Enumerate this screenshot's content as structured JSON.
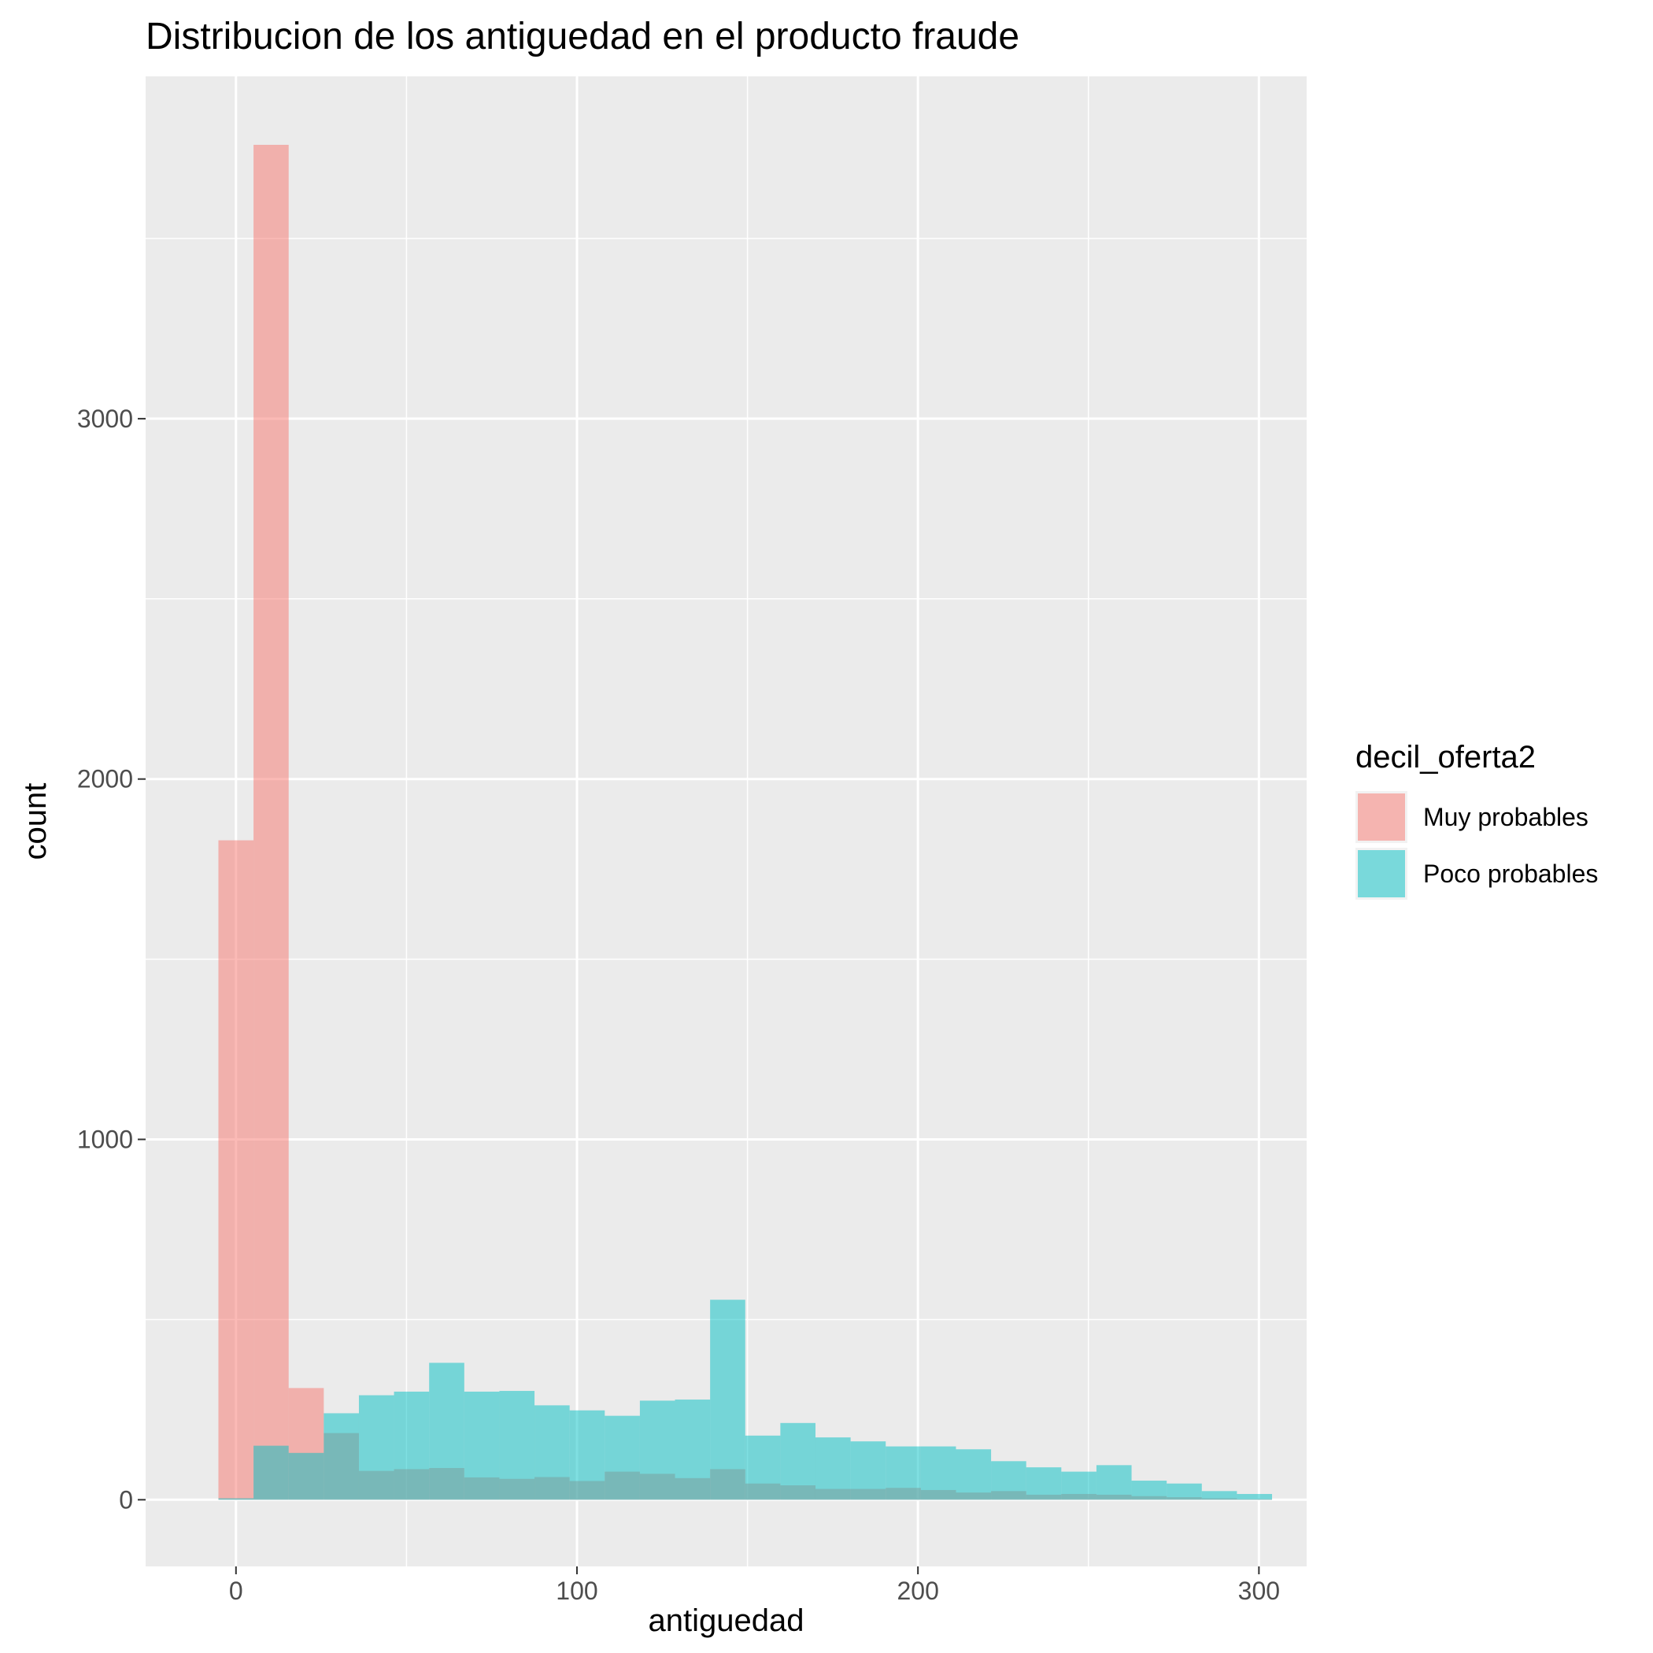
{
  "chart_data": {
    "type": "bar",
    "title": "Distribucion de los  antiguedad en el producto fraude",
    "xlabel": "antiguedad",
    "ylabel": "count",
    "xlim": [
      -26.5,
      314
    ],
    "ylim": [
      -185,
      3950
    ],
    "x_ticks": [
      0,
      100,
      200,
      300
    ],
    "y_ticks": [
      0,
      1000,
      2000,
      3000
    ],
    "bin_width": 10.3,
    "grid": true,
    "legend": {
      "title": "decil_oferta2",
      "placement": "right"
    },
    "bin_centers": [
      0,
      10.3,
      20.6,
      30.9,
      41.2,
      51.5,
      61.8,
      72.1,
      82.4,
      92.7,
      103,
      113.3,
      123.6,
      133.9,
      144.2,
      154.5,
      164.8,
      175.1,
      185.4,
      195.7,
      206,
      216.3,
      226.6,
      236.9,
      247.2,
      257.5,
      267.8,
      278.1,
      288.4,
      298.7
    ],
    "series": [
      {
        "name": "Muy probables",
        "color": "#F8766D",
        "values": [
          1830,
          3760,
          310,
          185,
          80,
          85,
          88,
          62,
          58,
          63,
          52,
          78,
          72,
          60,
          85,
          45,
          40,
          30,
          30,
          33,
          27,
          20,
          24,
          14,
          16,
          14,
          10,
          7,
          4,
          2
        ]
      },
      {
        "name": "Poco probables",
        "color": "#00BFC4",
        "values": [
          4,
          150,
          130,
          240,
          290,
          300,
          380,
          300,
          302,
          262,
          248,
          233,
          275,
          278,
          555,
          178,
          213,
          173,
          162,
          148,
          148,
          140,
          107,
          90,
          78,
          96,
          53,
          45,
          24,
          16
        ]
      }
    ]
  }
}
